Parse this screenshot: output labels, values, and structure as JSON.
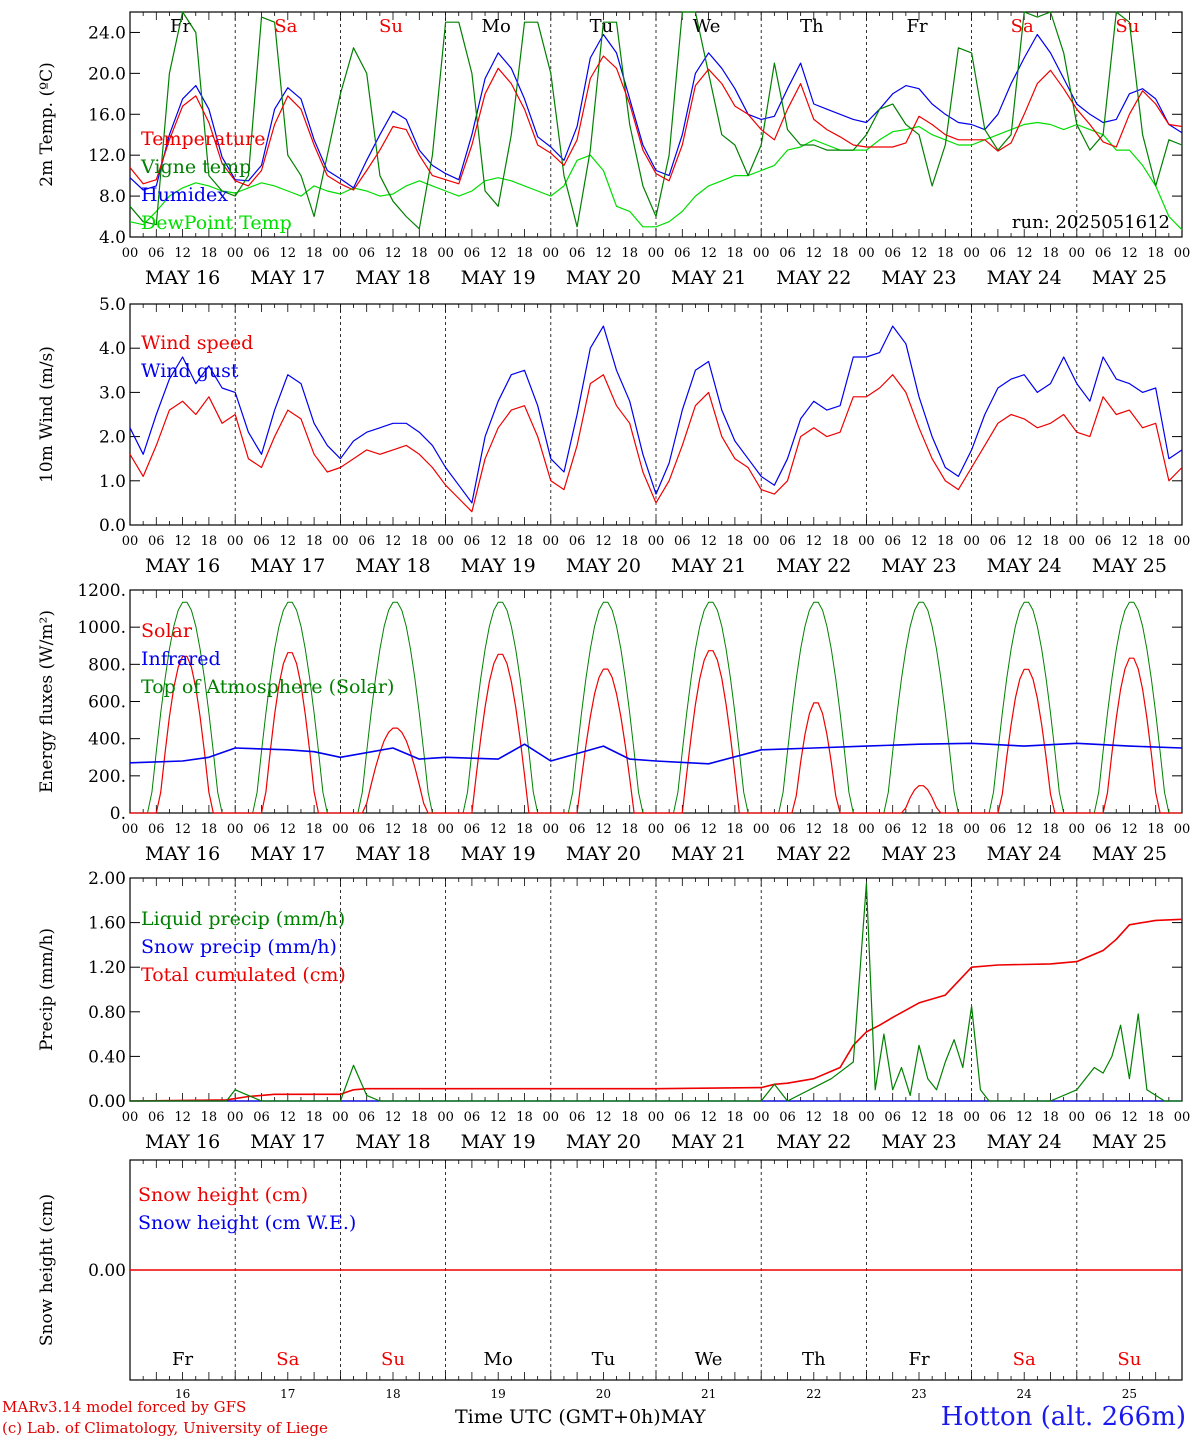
{
  "footer": {
    "model": "MARv3.14 model forced by GFS",
    "credit": "(c) Lab. of Climatology, University of Liege",
    "time_axis": "Time UTC (GMT+0h)",
    "month": "MAY",
    "station": "Hotton (alt. 266m)"
  },
  "colors": {
    "red": "#ee0000",
    "green": "#008000",
    "blue": "#0000ee",
    "lime": "#00dd00",
    "weekend": "#ee0000"
  },
  "days": [
    {
      "date": "16",
      "label": "MAY 16",
      "dow": "Fr",
      "weekend": false
    },
    {
      "date": "17",
      "label": "MAY 17",
      "dow": "Sa",
      "weekend": true
    },
    {
      "date": "18",
      "label": "MAY 18",
      "dow": "Su",
      "weekend": true
    },
    {
      "date": "19",
      "label": "MAY 19",
      "dow": "Mo",
      "weekend": false
    },
    {
      "date": "20",
      "label": "MAY 20",
      "dow": "Tu",
      "weekend": false
    },
    {
      "date": "21",
      "label": "MAY 21",
      "dow": "We",
      "weekend": false
    },
    {
      "date": "22",
      "label": "MAY 22",
      "dow": "Th",
      "weekend": false
    },
    {
      "date": "23",
      "label": "MAY 23",
      "dow": "Fr",
      "weekend": false
    },
    {
      "date": "24",
      "label": "MAY 24",
      "dow": "Sa",
      "weekend": true
    },
    {
      "date": "25",
      "label": "MAY 25",
      "dow": "Su",
      "weekend": true
    }
  ],
  "hour_ticks": [
    "00",
    "06",
    "12",
    "18"
  ],
  "chart_data": [
    {
      "type": "line",
      "id": "temp",
      "ylabel": "2m Temp. (ºC)",
      "ylim": [
        4,
        26
      ],
      "yticks": [
        "4.0",
        "8.0",
        "12.0",
        "16.0",
        "20.0",
        "24.0"
      ],
      "ytick_values": [
        4,
        8,
        12,
        16,
        20,
        24
      ],
      "annotation": "run: 2025051612",
      "show_dow": true,
      "legend_position": "left",
      "x_hours": [
        0,
        3,
        6,
        9,
        12,
        15,
        18,
        21,
        24,
        27,
        30,
        33,
        36,
        39,
        42,
        45,
        48,
        51,
        54,
        57,
        60,
        63,
        66,
        69,
        72,
        75,
        78,
        81,
        84,
        87,
        90,
        93,
        96,
        99,
        102,
        105,
        108,
        111,
        114,
        117,
        120,
        123,
        126,
        129,
        132,
        135,
        138,
        141,
        144,
        147,
        150,
        153,
        156,
        159,
        162,
        165,
        168,
        171,
        174,
        177,
        180,
        183,
        186,
        189,
        192,
        195,
        198,
        201,
        204,
        207,
        210,
        213,
        216,
        219,
        222,
        225,
        228,
        231,
        234,
        237,
        240
      ],
      "series": [
        {
          "name": "Temperature",
          "color": "#ee0000",
          "values": [
            10.8,
            9.2,
            9.6,
            13.5,
            16.8,
            17.8,
            15.2,
            11.2,
            9.5,
            9.0,
            10.5,
            15.0,
            17.8,
            16.5,
            13.0,
            10.0,
            9.2,
            8.6,
            10.5,
            12.5,
            14.8,
            14.5,
            12.0,
            10.0,
            9.6,
            9.2,
            13.0,
            18.0,
            20.5,
            19.0,
            16.5,
            13.0,
            12.2,
            11.0,
            13.5,
            19.5,
            21.7,
            20.5,
            17.0,
            12.5,
            10.2,
            9.5,
            13.0,
            18.8,
            20.4,
            19.0,
            16.8,
            16.0,
            14.5,
            13.5,
            16.5,
            19.0,
            15.5,
            14.5,
            13.8,
            13.0,
            12.8,
            12.8,
            12.8,
            13.2,
            15.8,
            15.0,
            14.0,
            13.5,
            13.5,
            13.5,
            12.4,
            13.2,
            16.0,
            19.0,
            20.3,
            18.5,
            16.5,
            15.0,
            13.3,
            12.8,
            16.0,
            18.3,
            17.0,
            15.0,
            14.8
          ]
        },
        {
          "name": "Vigne temp",
          "color": "#008000",
          "values": [
            7.0,
            5.5,
            5.2,
            20.0,
            26.0,
            24.0,
            10.0,
            8.5,
            8.0,
            10.0,
            25.5,
            25.0,
            12.0,
            10.0,
            6.0,
            12.0,
            18.0,
            22.5,
            20.0,
            10.0,
            7.5,
            6.0,
            4.8,
            12.0,
            25.0,
            25.0,
            20.0,
            8.5,
            7.0,
            14.0,
            25.0,
            25.0,
            20.0,
            10.0,
            5.0,
            12.5,
            25.0,
            25.0,
            15.0,
            9.0,
            6.0,
            12.0,
            26.0,
            26.0,
            20.0,
            14.0,
            13.0,
            10.0,
            13.0,
            21.0,
            14.5,
            13.0,
            13.0,
            12.5,
            12.5,
            12.5,
            14.0,
            16.5,
            17.0,
            15.0,
            14.0,
            9.0,
            13.0,
            22.5,
            22.0,
            14.5,
            12.5,
            14.0,
            26.0,
            25.5,
            26.0,
            22.0,
            15.0,
            12.5,
            14.0,
            26.0,
            25.0,
            14.0,
            9.0,
            13.5,
            13.0
          ]
        },
        {
          "name": "Humidex",
          "color": "#0000ee",
          "values": [
            9.8,
            8.6,
            9.0,
            14.0,
            17.5,
            18.8,
            16.5,
            11.8,
            9.6,
            9.5,
            11.0,
            16.5,
            18.6,
            17.5,
            13.5,
            10.5,
            9.7,
            8.8,
            11.5,
            14.0,
            16.3,
            15.5,
            12.5,
            11.0,
            10.2,
            9.6,
            14.0,
            19.5,
            22.0,
            20.5,
            17.5,
            13.8,
            12.8,
            11.5,
            14.8,
            21.5,
            23.8,
            22.0,
            17.5,
            13.0,
            10.5,
            10.0,
            14.0,
            20.0,
            22.0,
            20.5,
            18.5,
            16.0,
            15.5,
            15.8,
            18.5,
            21.0,
            17.0,
            16.5,
            16.0,
            15.5,
            15.2,
            16.5,
            18.0,
            18.8,
            18.5,
            17.0,
            16.0,
            15.2,
            15.0,
            14.5,
            16.0,
            19.0,
            21.5,
            23.8,
            22.0,
            19.5,
            17.0,
            16.0,
            15.2,
            15.5,
            18.0,
            18.5,
            17.5,
            15.0,
            14.2
          ]
        },
        {
          "name": "DewPoint Temp",
          "color": "#00dd00",
          "values": [
            5.5,
            5.2,
            6.5,
            8.0,
            8.8,
            9.3,
            9.0,
            8.5,
            8.3,
            8.8,
            9.3,
            9.0,
            8.5,
            8.0,
            9.0,
            8.5,
            8.2,
            8.8,
            8.5,
            8.0,
            8.2,
            9.0,
            9.5,
            9.0,
            8.5,
            8.0,
            8.5,
            9.5,
            9.8,
            9.5,
            9.0,
            8.5,
            8.0,
            9.0,
            11.5,
            12.0,
            10.5,
            7.0,
            6.5,
            5.0,
            5.0,
            5.5,
            6.5,
            8.0,
            9.0,
            9.5,
            10.0,
            10.0,
            10.5,
            11.0,
            12.5,
            12.8,
            13.5,
            13.0,
            12.5,
            12.5,
            12.5,
            13.5,
            14.3,
            14.5,
            14.8,
            14.0,
            13.5,
            13.0,
            13.0,
            13.5,
            14.0,
            14.5,
            15.0,
            15.2,
            15.0,
            14.5,
            15.0,
            14.5,
            14.0,
            12.5,
            12.5,
            11.0,
            9.0,
            6.0,
            4.7
          ]
        }
      ]
    },
    {
      "type": "line",
      "id": "wind",
      "ylabel": "10m Wind (m/s)",
      "ylim": [
        0,
        5
      ],
      "yticks": [
        "0.0",
        "1.0",
        "2.0",
        "3.0",
        "4.0",
        "5.0"
      ],
      "ytick_values": [
        0,
        1,
        2,
        3,
        4,
        5
      ],
      "show_dow": false,
      "legend_position": "left",
      "x_hours": [
        0,
        3,
        6,
        9,
        12,
        15,
        18,
        21,
        24,
        27,
        30,
        33,
        36,
        39,
        42,
        45,
        48,
        51,
        54,
        57,
        60,
        63,
        66,
        69,
        72,
        75,
        78,
        81,
        84,
        87,
        90,
        93,
        96,
        99,
        102,
        105,
        108,
        111,
        114,
        117,
        120,
        123,
        126,
        129,
        132,
        135,
        138,
        141,
        144,
        147,
        150,
        153,
        156,
        159,
        162,
        165,
        168,
        171,
        174,
        177,
        180,
        183,
        186,
        189,
        192,
        195,
        198,
        201,
        204,
        207,
        210,
        213,
        216,
        219,
        222,
        225,
        228,
        231,
        234,
        237,
        240
      ],
      "series": [
        {
          "name": "Wind speed",
          "color": "#ee0000",
          "values": [
            1.6,
            1.1,
            1.8,
            2.6,
            2.8,
            2.5,
            2.9,
            2.3,
            2.5,
            1.5,
            1.3,
            2.0,
            2.6,
            2.4,
            1.6,
            1.2,
            1.3,
            1.5,
            1.7,
            1.6,
            1.7,
            1.8,
            1.6,
            1.3,
            0.9,
            0.6,
            0.3,
            1.5,
            2.2,
            2.6,
            2.7,
            2.0,
            1.0,
            0.8,
            1.8,
            3.2,
            3.4,
            2.7,
            2.3,
            1.2,
            0.5,
            1.0,
            1.8,
            2.7,
            3.0,
            2.0,
            1.5,
            1.3,
            0.8,
            0.7,
            1.0,
            2.0,
            2.2,
            2.0,
            2.1,
            2.9,
            2.9,
            3.1,
            3.4,
            3.0,
            2.2,
            1.5,
            1.0,
            0.8,
            1.3,
            1.8,
            2.3,
            2.5,
            2.4,
            2.2,
            2.3,
            2.5,
            2.1,
            2.0,
            2.9,
            2.5,
            2.6,
            2.2,
            2.3,
            1.0,
            1.3
          ]
        },
        {
          "name": "Wind gust",
          "color": "#0000ee",
          "values": [
            2.2,
            1.6,
            2.5,
            3.3,
            3.8,
            3.2,
            3.6,
            3.1,
            3.0,
            2.1,
            1.6,
            2.6,
            3.4,
            3.2,
            2.3,
            1.8,
            1.5,
            1.9,
            2.1,
            2.2,
            2.3,
            2.3,
            2.1,
            1.8,
            1.3,
            0.9,
            0.5,
            2.0,
            2.8,
            3.4,
            3.5,
            2.7,
            1.5,
            1.2,
            2.5,
            4.0,
            4.5,
            3.5,
            2.8,
            1.6,
            0.7,
            1.4,
            2.6,
            3.5,
            3.7,
            2.6,
            1.9,
            1.5,
            1.1,
            0.9,
            1.5,
            2.4,
            2.8,
            2.6,
            2.7,
            3.8,
            3.8,
            3.9,
            4.5,
            4.1,
            2.9,
            2.0,
            1.3,
            1.1,
            1.7,
            2.5,
            3.1,
            3.3,
            3.4,
            3.0,
            3.2,
            3.8,
            3.2,
            2.8,
            3.8,
            3.3,
            3.2,
            3.0,
            3.1,
            1.5,
            1.7
          ]
        }
      ]
    },
    {
      "type": "line",
      "id": "flux",
      "ylabel": "Energy fluxes (W/m²)",
      "ylim": [
        0,
        1200
      ],
      "yticks": [
        "0.",
        "200.",
        "400.",
        "600.",
        "800.",
        "1000.",
        "1200."
      ],
      "ytick_values": [
        0,
        200,
        400,
        600,
        800,
        1000,
        1200
      ],
      "show_dow": false,
      "legend_position": "left",
      "daily_peak_hour": 12.5,
      "toa_daily_peak": 1140,
      "toa_halfwidth_hours": 8,
      "solar_daily_peak": [
        850,
        870,
        460,
        860,
        780,
        880,
        600,
        150,
        780,
        840
      ],
      "solar_halfwidth_hours": [
        6,
        6,
        7,
        6.5,
        6.5,
        6.5,
        5,
        4,
        6,
        6
      ],
      "infrared_x_hours": [
        0,
        12,
        18,
        24,
        36,
        42,
        48,
        60,
        66,
        72,
        84,
        90,
        96,
        108,
        114,
        120,
        132,
        144,
        156,
        168,
        180,
        192,
        204,
        216,
        228,
        240
      ],
      "infrared_values": [
        270,
        280,
        300,
        350,
        340,
        330,
        300,
        350,
        290,
        300,
        290,
        370,
        280,
        360,
        290,
        280,
        265,
        340,
        350,
        360,
        370,
        375,
        360,
        375,
        360,
        350
      ],
      "series": [
        {
          "name": "Solar",
          "color": "#ee0000"
        },
        {
          "name": "Infrared",
          "color": "#0000ee"
        },
        {
          "name": "Top of Atmosphere (Solar)",
          "color": "#008000"
        }
      ]
    },
    {
      "type": "line",
      "id": "precip",
      "ylabel": "Precip (mm/h)",
      "ylim": [
        0,
        2
      ],
      "yticks": [
        "0.00",
        "0.40",
        "0.80",
        "1.20",
        "1.60",
        "2.00"
      ],
      "ytick_values": [
        0,
        0.4,
        0.8,
        1.2,
        1.6,
        2.0
      ],
      "show_dow": false,
      "legend_position": "left",
      "series": [
        {
          "name": "Liquid precip (mm/h)",
          "color": "#008000",
          "x": [
            0,
            22,
            24,
            27,
            30,
            48,
            51,
            54,
            57,
            144,
            147,
            150,
            160,
            165,
            168,
            170,
            172,
            174,
            176,
            178,
            180,
            182,
            184,
            186,
            188,
            190,
            192,
            194,
            196,
            200,
            210,
            216,
            220,
            222,
            224,
            226,
            228,
            230,
            232,
            236,
            240
          ],
          "values": [
            0,
            0,
            0.1,
            0.05,
            0,
            0,
            0.32,
            0.05,
            0,
            0,
            0.15,
            0,
            0.2,
            0.35,
            1.95,
            0.1,
            0.6,
            0.1,
            0.3,
            0.05,
            0.5,
            0.2,
            0.1,
            0.35,
            0.55,
            0.3,
            0.85,
            0.1,
            0,
            0,
            0,
            0.1,
            0.3,
            0.25,
            0.4,
            0.68,
            0.2,
            0.78,
            0.1,
            0,
            0
          ]
        },
        {
          "name": "Snow precip (mm/h)",
          "color": "#0000ee",
          "x": [
            0,
            240
          ],
          "values": [
            0,
            0
          ]
        },
        {
          "name": "Total cumulated (cm)",
          "color": "#ee0000",
          "x": [
            0,
            22,
            27,
            33,
            48,
            51,
            54,
            72,
            96,
            120,
            144,
            147,
            150,
            156,
            162,
            165,
            168,
            171,
            174,
            180,
            186,
            192,
            198,
            210,
            216,
            222,
            225,
            228,
            234,
            240
          ],
          "values": [
            0,
            0.01,
            0.04,
            0.06,
            0.06,
            0.1,
            0.11,
            0.11,
            0.11,
            0.11,
            0.12,
            0.15,
            0.16,
            0.2,
            0.3,
            0.5,
            0.62,
            0.68,
            0.75,
            0.88,
            0.95,
            1.2,
            1.22,
            1.23,
            1.25,
            1.35,
            1.45,
            1.58,
            1.62,
            1.63
          ]
        }
      ]
    },
    {
      "type": "line",
      "id": "snow",
      "ylabel": "Snow height (cm)",
      "ylim": [
        -1,
        1
      ],
      "yticks": [
        "0.00"
      ],
      "ytick_values": [
        0
      ],
      "show_dow": false,
      "legend_position": "left",
      "series": [
        {
          "name": "Snow height (cm)",
          "color": "#ee0000",
          "x": [
            0,
            240
          ],
          "values": [
            0,
            0
          ]
        },
        {
          "name": "Snow height (cm W.E.)",
          "color": "#0000ee"
        }
      ]
    }
  ]
}
